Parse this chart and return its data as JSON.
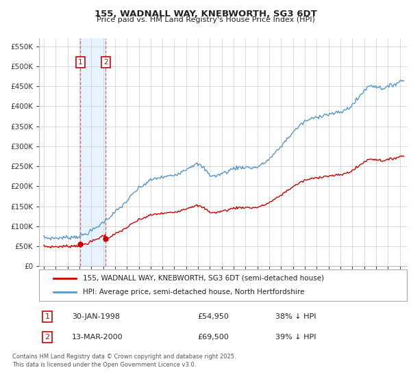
{
  "title1": "155, WADNALL WAY, KNEBWORTH, SG3 6DT",
  "title2": "Price paid vs. HM Land Registry's House Price Index (HPI)",
  "yticks": [
    0,
    50000,
    100000,
    150000,
    200000,
    250000,
    300000,
    350000,
    400000,
    450000,
    500000,
    550000
  ],
  "ytick_labels": [
    "£0",
    "£50K",
    "£100K",
    "£150K",
    "£200K",
    "£250K",
    "£300K",
    "£350K",
    "£400K",
    "£450K",
    "£500K",
    "£550K"
  ],
  "ylim": [
    0,
    570000
  ],
  "legend1": "155, WADNALL WAY, KNEBWORTH, SG3 6DT (semi-detached house)",
  "legend2": "HPI: Average price, semi-detached house, North Hertfordshire",
  "line1_color": "#cc0000",
  "line2_color": "#5599cc",
  "transaction1_date": "30-JAN-1998",
  "transaction1_price": "54,950",
  "transaction1_pct": "38% ↓ HPI",
  "transaction2_date": "13-MAR-2000",
  "transaction2_price": "69,500",
  "transaction2_pct": "39% ↓ HPI",
  "footnote1": "Contains HM Land Registry data © Crown copyright and database right 2025.",
  "footnote2": "This data is licensed under the Open Government Licence v3.0.",
  "bg_color": "#ffffff",
  "grid_color": "#cccccc",
  "sale1_year": 1998.08,
  "sale2_year": 2000.21,
  "shade_color": "#ddeeff",
  "vline_color": "#dd4444"
}
